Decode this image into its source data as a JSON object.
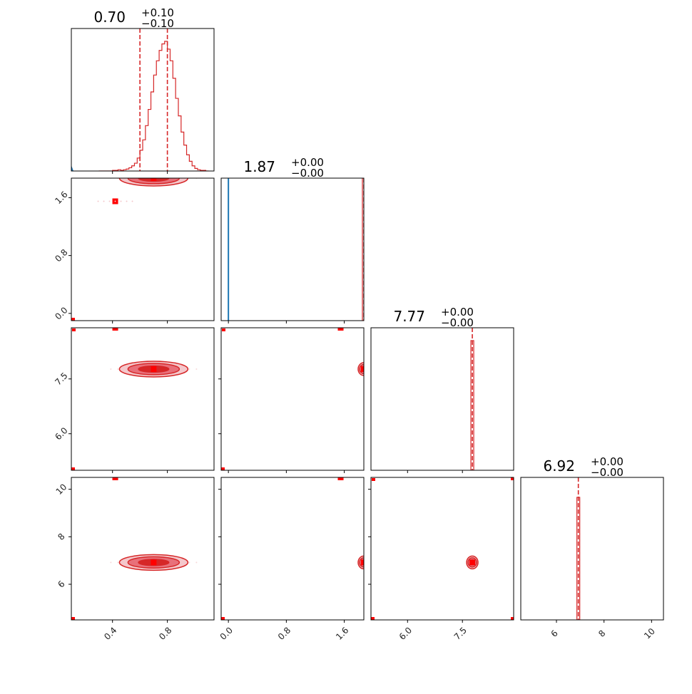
{
  "chart_data": {
    "type": "corner",
    "titles": [
      {
        "value": "0.70",
        "plus": "+0.10",
        "minus": "−0.10"
      },
      {
        "value": "1.87",
        "plus": "+0.00",
        "minus": "−0.00"
      },
      {
        "value": "7.77",
        "plus": "+0.00",
        "minus": "−0.00"
      },
      {
        "value": "6.92",
        "plus": "+0.00",
        "minus": "−0.00"
      }
    ],
    "params": [
      {
        "range": [
          0.1,
          1.14
        ],
        "ticks": [
          0.4,
          0.8
        ],
        "tick_labels": [
          "0.4",
          "0.8"
        ],
        "median": 0.7,
        "lo": 0.6,
        "hi": 0.8
      },
      {
        "range": [
          -0.1,
          1.87
        ],
        "ticks": [
          0.0,
          0.8,
          1.6
        ],
        "tick_labels": [
          "0.0",
          "0.8",
          "1.6"
        ],
        "median": 1.87,
        "lo": 1.87,
        "hi": 1.87
      },
      {
        "range": [
          5.0,
          8.9
        ],
        "ticks": [
          6.0,
          7.5
        ],
        "tick_labels": [
          "6.0",
          "7.5"
        ],
        "median": 7.77,
        "lo": 7.77,
        "hi": 7.77
      },
      {
        "range": [
          4.5,
          10.5
        ],
        "ticks": [
          6,
          8,
          10
        ],
        "tick_labels": [
          "6",
          "8",
          "10"
        ],
        "median": 6.92,
        "lo": 6.92,
        "hi": 6.92
      }
    ],
    "colors": {
      "red": "#d62728",
      "blue": "#1f77b4",
      "fill_dark": "#d62728",
      "fill_mid": "#e8707a",
      "fill_light": "#f4c7cb",
      "marker": "#ff0000"
    },
    "hist0": [
      0,
      0,
      0,
      0,
      0,
      1,
      1,
      2,
      1,
      2,
      3,
      5,
      8,
      12,
      20,
      32,
      48,
      70,
      95,
      122,
      148,
      170,
      186,
      196,
      200,
      188,
      170,
      143,
      112,
      85,
      60,
      40,
      25,
      15,
      8,
      4,
      2,
      1,
      1,
      0
    ],
    "outliers_x": [
      0.42
    ],
    "outliers_y": [
      1.55
    ]
  }
}
